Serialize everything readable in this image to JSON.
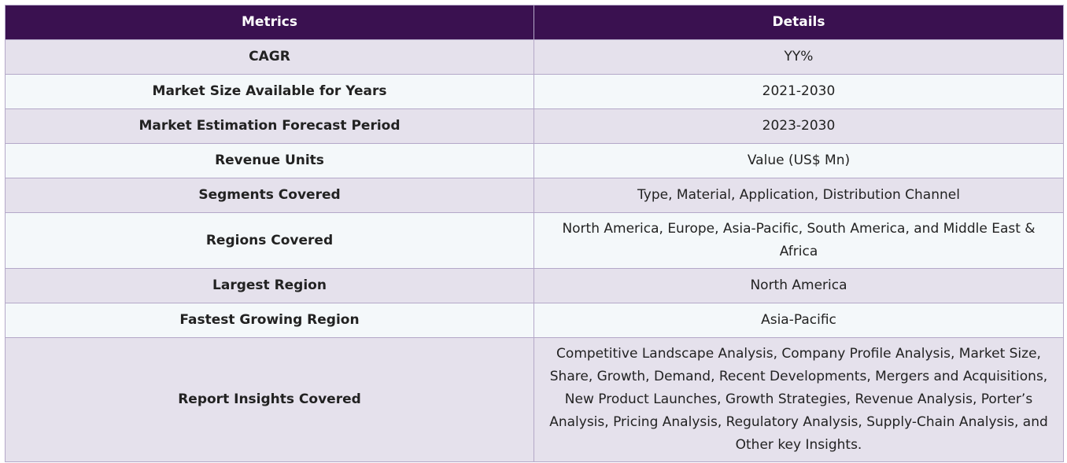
{
  "table": {
    "header": [
      "Metrics",
      "Details"
    ],
    "rows": [
      [
        "CAGR",
        "YY%"
      ],
      [
        "Market Size Available for Years",
        "2021-2030"
      ],
      [
        "Market Estimation Forecast Period",
        "2023-2030"
      ],
      [
        "Revenue Units",
        "Value (US$ Mn)"
      ],
      [
        "Segments Covered",
        "Type, Material, Application, Distribution Channel"
      ],
      [
        "Regions Covered",
        "North America, Europe, Asia-Pacific, South America, and Middle East & Africa"
      ],
      [
        "Largest Region",
        "North America"
      ],
      [
        "Fastest Growing Region",
        "Asia-Pacific"
      ],
      [
        "Report Insights Covered",
        "Competitive Landscape Analysis, Company Profile Analysis, Market Size, Share, Growth, Demand, Recent Developments, Mergers and Acquisitions, New Product Launches, Growth Strategies, Revenue Analysis, Porter’s Analysis, Pricing Analysis, Regulatory Analysis, Supply-Chain Analysis, and Other key Insights."
      ]
    ]
  }
}
